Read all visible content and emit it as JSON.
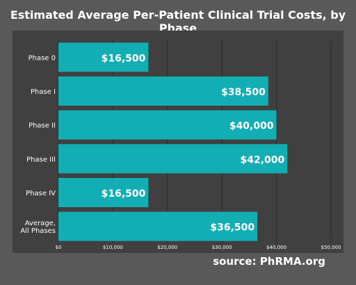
{
  "title": "Estimated Average Per-Patient Clinical Trial Costs, by Phase",
  "source": "source: PhRMA.org",
  "colors": {
    "background": "#595959",
    "panel": "#404040",
    "bar": "#13aeb4",
    "grid": "#2a2a2a",
    "text": "#ffffff"
  },
  "chart_data": {
    "type": "bar",
    "orientation": "horizontal",
    "title": "Estimated Average Per-Patient Clinical Trial Costs, by Phase",
    "categories": [
      "Phase 0",
      "Phase I",
      "Phase II",
      "Phase III",
      "Phase IV",
      "Average, All Phases"
    ],
    "category_lines": [
      [
        "Phase 0"
      ],
      [
        "Phase I"
      ],
      [
        "Phase II"
      ],
      [
        "Phase III"
      ],
      [
        "Phase IV"
      ],
      [
        "Average,",
        "All Phases"
      ]
    ],
    "values": [
      16500,
      38500,
      40000,
      42000,
      16500,
      36500
    ],
    "value_labels": [
      "$16,500",
      "$38,500",
      "$40,000",
      "$42,000",
      "$16,500",
      "$36,500"
    ],
    "xlim": [
      0,
      50000
    ],
    "xticks": [
      0,
      10000,
      20000,
      30000,
      40000,
      50000
    ],
    "xtick_labels": [
      "$0",
      "$10,000",
      "$20,000",
      "$30,000",
      "$40,000",
      "$50,000"
    ],
    "xlabel": "",
    "ylabel": "",
    "grid": true
  }
}
